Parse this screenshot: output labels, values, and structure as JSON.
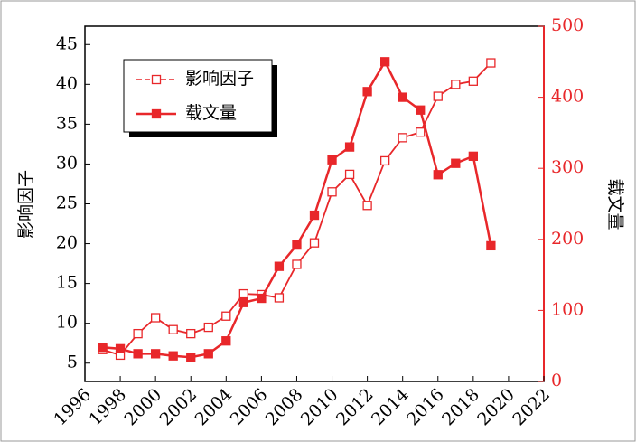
{
  "chart_data": {
    "type": "line",
    "y_label": "影响因子",
    "y2_label": "载文量",
    "x": [
      1997,
      1998,
      1999,
      2000,
      2001,
      2002,
      2003,
      2004,
      2005,
      2006,
      2007,
      2008,
      2009,
      2010,
      2011,
      2012,
      2013,
      2014,
      2015,
      2016,
      2017,
      2018,
      2019
    ],
    "series": [
      {
        "name": "影响因子",
        "color": "#e8272a",
        "marker": "hollow-square",
        "values": [
          6.7,
          6.0,
          8.7,
          10.7,
          9.2,
          8.7,
          9.5,
          10.9,
          13.7,
          13.6,
          13.2,
          17.4,
          20.1,
          26.5,
          28.7,
          24.8,
          30.4,
          33.3,
          34.0,
          38.5,
          40.0,
          40.4,
          42.7
        ]
      },
      {
        "name": "载文量",
        "color": "#e8272a",
        "marker": "filled-square",
        "axis": "y2",
        "values": [
          48,
          46,
          39,
          39,
          36,
          34,
          39,
          57,
          111,
          117,
          162,
          192,
          234,
          312,
          330,
          408,
          450,
          400,
          382,
          291,
          307,
          317,
          191
        ]
      }
    ],
    "xlim": [
      1996,
      2022
    ],
    "xticks": [
      1996,
      1998,
      2000,
      2002,
      2004,
      2006,
      2008,
      2010,
      2012,
      2014,
      2016,
      2018,
      2020,
      2022
    ],
    "ylim": [
      2.7,
      47.3
    ],
    "yticks": [
      5,
      10,
      15,
      20,
      25,
      30,
      35,
      40,
      45
    ],
    "y2lim": [
      0,
      500
    ],
    "y2ticks": [
      0,
      100,
      200,
      300,
      400,
      500
    ],
    "y2_color": "#e8272a",
    "legend": "upper left"
  }
}
